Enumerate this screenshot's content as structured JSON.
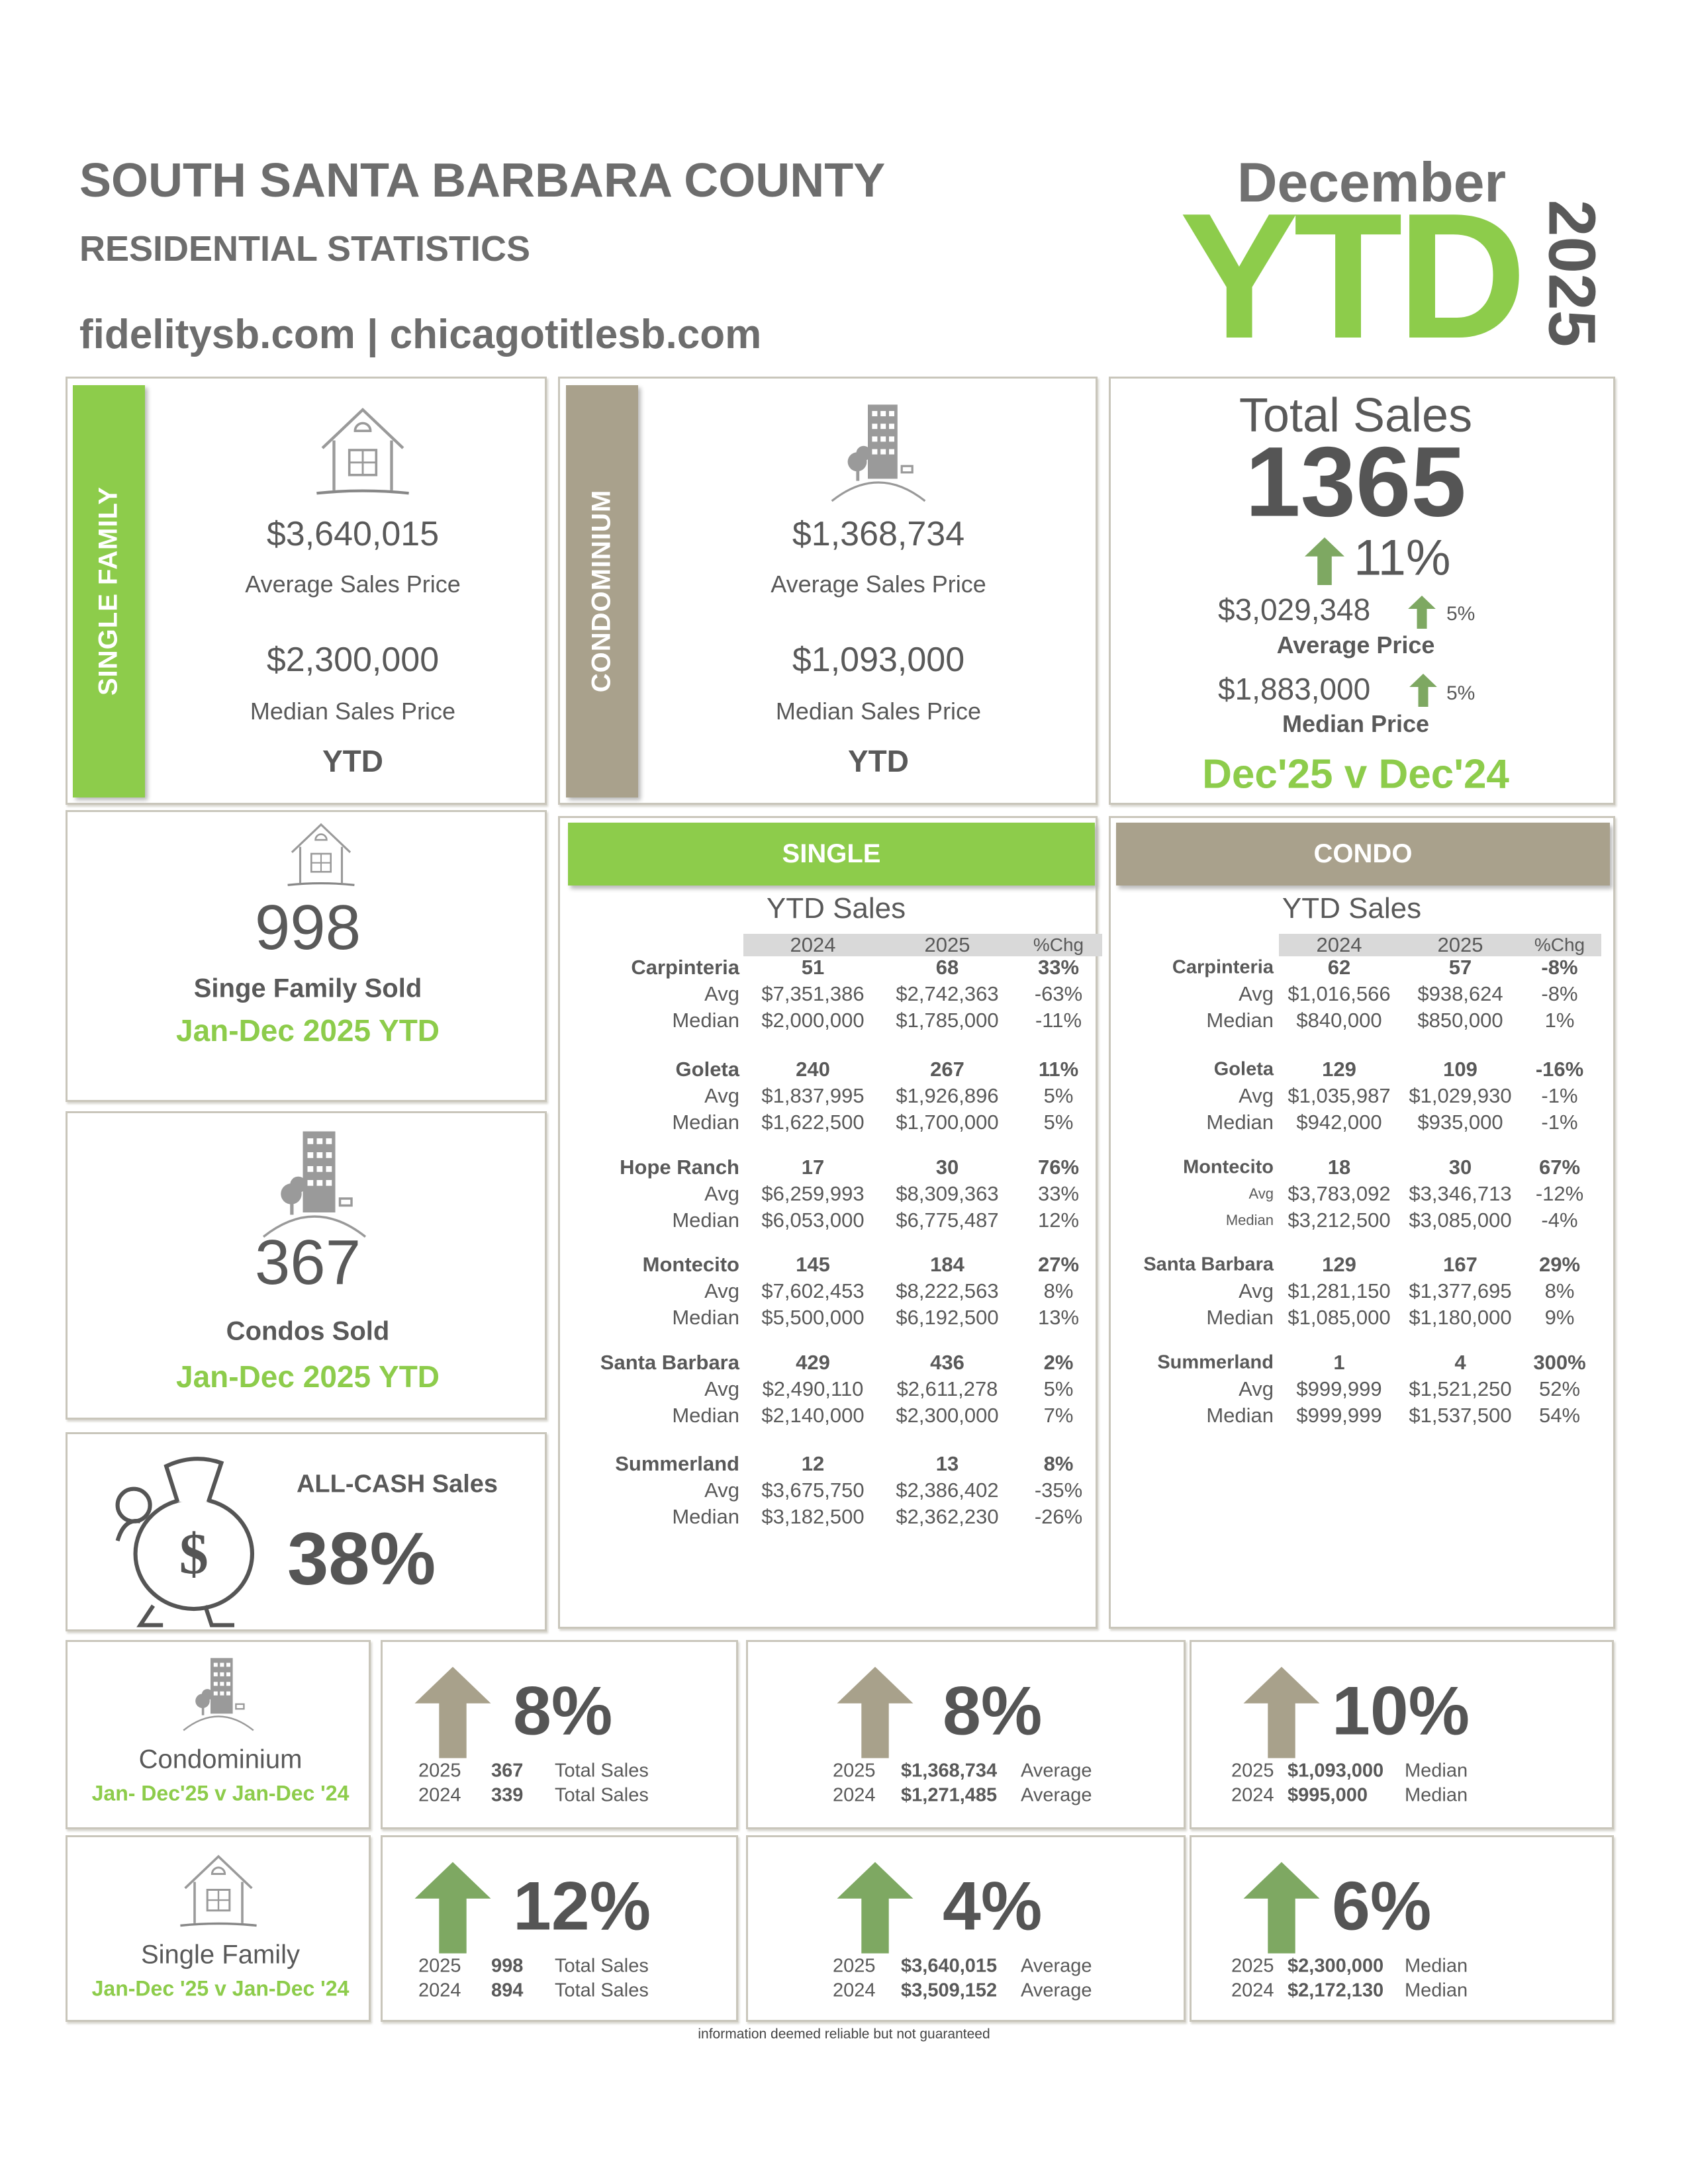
{
  "header": {
    "title": "SOUTH SANTA BARBARA COUNTY",
    "subtitle": "RESIDENTIAL STATISTICS",
    "websites": "fidelitysb.com | chicagotitlesb.com",
    "month": "December",
    "ytd": "YTD",
    "year": "2025"
  },
  "colors": {
    "green": "#8dcc4b",
    "taupe": "#a9a18c",
    "text": "#595959",
    "arrow_green": "#7ea862",
    "arrow_taupe": "#a8a18b"
  },
  "single_family": {
    "band_label": "SINGLE FAMILY",
    "icon": "house-icon",
    "avg_price": "$3,640,015",
    "avg_label": "Average Sales Price",
    "median_price": "$2,300,000",
    "median_label": "Median Sales Price",
    "period": "YTD"
  },
  "condominium": {
    "band_label": "CONDOMINIUM",
    "icon": "building-icon",
    "avg_price": "$1,368,734",
    "avg_label": "Average Sales Price",
    "median_price": "$1,093,000",
    "median_label": "Median Sales Price",
    "period": "YTD"
  },
  "total": {
    "label": "Total Sales",
    "value": "1365",
    "change": "11%",
    "avg_price": "$3,029,348",
    "avg_change": "5%",
    "avg_label": "Average Price",
    "median_price": "$1,883,000",
    "median_change": "5%",
    "median_label": "Median Price",
    "comparison": "Dec'25 v Dec'24"
  },
  "sf_sold": {
    "value": "998",
    "label": "Singe Family Sold",
    "period": "Jan-Dec 2025 YTD"
  },
  "condo_sold": {
    "value": "367",
    "label": "Condos Sold",
    "period": "Jan-Dec 2025 YTD"
  },
  "cash": {
    "label": "ALL-CASH Sales",
    "value": "38%",
    "icon": "money-bag-icon"
  },
  "tables": [
    {
      "header": "SINGLE",
      "subtitle": "YTD Sales",
      "columns": [
        "2024",
        "2025",
        "%Chg"
      ],
      "areas": [
        {
          "name": "Carpinteria",
          "sales": [
            "51",
            "68",
            "33%"
          ],
          "avg": [
            "Avg",
            "$7,351,386",
            "$2,742,363",
            "-63%"
          ],
          "median": [
            "Median",
            "$2,000,000",
            "$1,785,000",
            "-11%"
          ]
        },
        {
          "name": "Goleta",
          "sales": [
            "240",
            "267",
            "11%"
          ],
          "avg": [
            "Avg",
            "$1,837,995",
            "$1,926,896",
            "5%"
          ],
          "median": [
            "Median",
            "$1,622,500",
            "$1,700,000",
            "5%"
          ]
        },
        {
          "name": "Hope Ranch",
          "sales": [
            "17",
            "30",
            "76%"
          ],
          "avg": [
            "Avg",
            "$6,259,993",
            "$8,309,363",
            "33%"
          ],
          "median": [
            "Median",
            "$6,053,000",
            "$6,775,487",
            "12%"
          ]
        },
        {
          "name": "Montecito",
          "sales": [
            "145",
            "184",
            "27%"
          ],
          "avg": [
            "Avg",
            "$7,602,453",
            "$8,222,563",
            "8%"
          ],
          "median": [
            "Median",
            "$5,500,000",
            "$6,192,500",
            "13%"
          ]
        },
        {
          "name": "Santa Barbara",
          "sales": [
            "429",
            "436",
            "2%"
          ],
          "avg": [
            "Avg",
            "$2,490,110",
            "$2,611,278",
            "5%"
          ],
          "median": [
            "Median",
            "$2,140,000",
            "$2,300,000",
            "7%"
          ]
        },
        {
          "name": "Summerland",
          "sales": [
            "12",
            "13",
            "8%"
          ],
          "avg": [
            "Avg",
            "$3,675,750",
            "$2,386,402",
            "-35%"
          ],
          "median": [
            "Median",
            "$3,182,500",
            "$2,362,230",
            "-26%"
          ]
        }
      ]
    },
    {
      "header": "CONDO",
      "subtitle": "YTD Sales",
      "columns": [
        "2024",
        "2025",
        "%Chg"
      ],
      "areas": [
        {
          "name": "Carpinteria",
          "sales": [
            "62",
            "57",
            "-8%"
          ],
          "avg": [
            "Avg",
            "$1,016,566",
            "$938,624",
            "-8%"
          ],
          "median": [
            "Median",
            "$840,000",
            "$850,000",
            "1%"
          ]
        },
        {
          "name": "Goleta",
          "sales": [
            "129",
            "109",
            "-16%"
          ],
          "avg": [
            "Avg",
            "$1,035,987",
            "$1,029,930",
            "-1%"
          ],
          "median": [
            "Median",
            "$942,000",
            "$935,000",
            "-1%"
          ]
        },
        {
          "name": "Montecito",
          "sales": [
            "18",
            "30",
            "67%"
          ],
          "avg": [
            "Avg",
            "$3,783,092",
            "$3,346,713",
            "-12%"
          ],
          "median": [
            "Median",
            "$3,212,500",
            "$3,085,000",
            "-4%"
          ]
        },
        {
          "name": "Santa Barbara",
          "sales": [
            "129",
            "167",
            "29%"
          ],
          "avg": [
            "Avg",
            "$1,281,150",
            "$1,377,695",
            "8%"
          ],
          "median": [
            "Median",
            "$1,085,000",
            "$1,180,000",
            "9%"
          ]
        },
        {
          "name": "Summerland",
          "sales": [
            "1",
            "4",
            "300%"
          ],
          "avg": [
            "Avg",
            "$999,999",
            "$1,521,250",
            "52%"
          ],
          "median": [
            "Median",
            "$999,999",
            "$1,537,500",
            "54%"
          ]
        }
      ]
    }
  ],
  "comparisons": [
    {
      "label": "Condominium",
      "period": "Jan- Dec'25 v Jan-Dec '24",
      "icon": "building-icon",
      "arrow": "taupe",
      "cards": [
        {
          "change": "8%",
          "rows": [
            [
              "2025",
              "367",
              "Total Sales"
            ],
            [
              "2024",
              "339",
              "Total Sales"
            ]
          ]
        },
        {
          "change": "8%",
          "rows": [
            [
              "2025",
              "$1,368,734",
              "Average"
            ],
            [
              "2024",
              "$1,271,485",
              "Average"
            ]
          ]
        },
        {
          "change": "10%",
          "rows": [
            [
              "2025",
              "$1,093,000",
              "Median"
            ],
            [
              "2024",
              "$995,000",
              "Median"
            ]
          ]
        }
      ]
    },
    {
      "label": "Single Family",
      "period": "Jan-Dec '25 v Jan-Dec '24",
      "icon": "house-icon",
      "arrow": "green",
      "cards": [
        {
          "change": "12%",
          "rows": [
            [
              "2025",
              "998",
              "Total Sales"
            ],
            [
              "2024",
              "894",
              "Total Sales"
            ]
          ]
        },
        {
          "change": "4%",
          "rows": [
            [
              "2025",
              "$3,640,015",
              "Average"
            ],
            [
              "2024",
              "$3,509,152",
              "Average"
            ]
          ]
        },
        {
          "change": "6%",
          "rows": [
            [
              "2025",
              "$2,300,000",
              "Median"
            ],
            [
              "2024",
              "$2,172,130",
              "Median"
            ]
          ]
        }
      ]
    }
  ],
  "footer": "information deemed reliable but not guaranteed"
}
